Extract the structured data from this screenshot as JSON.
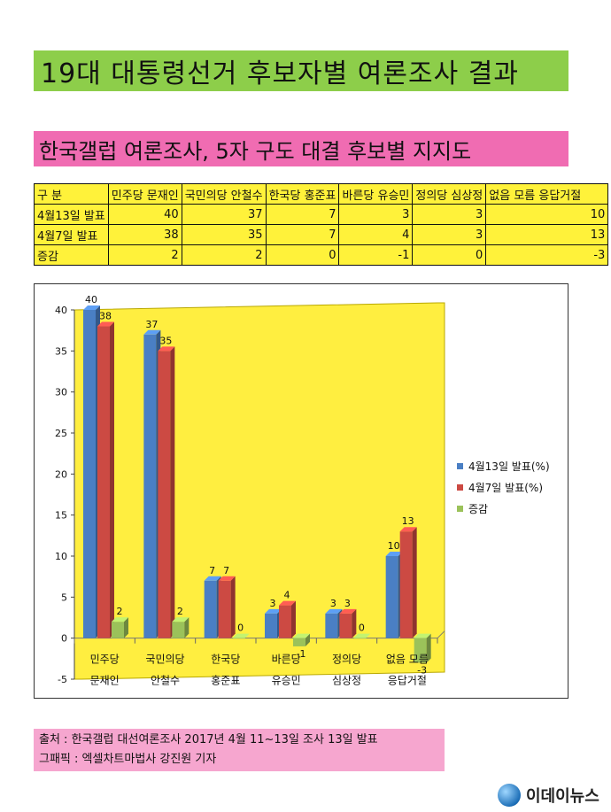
{
  "title": "19대 대통령선거 후보자별 여론조사 결과",
  "subtitle": "한국갤럽 여론조사, 5자 구도 대결 후보별 지지도",
  "table": {
    "header": [
      "구 분",
      "민주당 문재인",
      "국민의당 안철수",
      "한국당 홍준표",
      "바른당 유승민",
      "정의당 심상정",
      "없음 모름 응답거절"
    ],
    "rows": [
      {
        "label": "4월13일 발표",
        "values": [
          "40",
          "37",
          "7",
          "3",
          "3",
          "10"
        ]
      },
      {
        "label": "4월7일 발표",
        "values": [
          "38",
          "35",
          "7",
          "4",
          "3",
          "13"
        ]
      },
      {
        "label": "증감",
        "values": [
          "2",
          "2",
          "0",
          "-1",
          "0",
          "-3"
        ]
      }
    ]
  },
  "chart_data": {
    "type": "bar",
    "categories": [
      "민주당 문재인",
      "국민의당 안철수",
      "한국당 홍준표",
      "바른당 유승민",
      "정의당 심상정",
      "없음 모름 응답거절"
    ],
    "series": [
      {
        "name": "4월13일 발표(%)",
        "values": [
          40,
          37,
          7,
          3,
          3,
          10
        ],
        "color": "#4a7fc4"
      },
      {
        "name": "4월7일 발표(%)",
        "values": [
          38,
          35,
          7,
          4,
          3,
          13
        ],
        "color": "#cc4a43"
      },
      {
        "name": "증감",
        "values": [
          2,
          2,
          0,
          -1,
          0,
          -3
        ],
        "color": "#9bc25a"
      }
    ],
    "ylim": [
      -5,
      40
    ],
    "yticks": [
      -5,
      0,
      5,
      10,
      15,
      20,
      25,
      30,
      35,
      40
    ],
    "grid": false,
    "legend": "right",
    "plot_background": "#ffee40"
  },
  "source": {
    "line1": "출처 : 한국갤럽 대선여론조사 2017년 4월 11~13일 조사 13일 발표",
    "line2": "그패픽 : 엑셀차트마법사 강진원 기자"
  },
  "logo": {
    "text": "이데이뉴스"
  }
}
